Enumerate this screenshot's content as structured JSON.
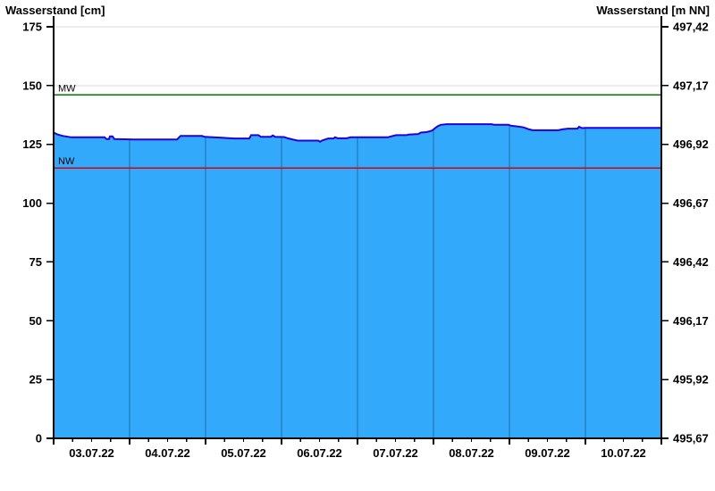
{
  "titles": {
    "left": "Wasserstand [cm]",
    "right": "Wasserstand [m NN]"
  },
  "chart_data": {
    "type": "area",
    "title": "Wasserstand hydrograph",
    "x": {
      "day_labels": [
        "03.07.22",
        "04.07.22",
        "05.07.22",
        "06.07.22",
        "07.07.22",
        "08.07.22",
        "09.07.22",
        "10.07.22"
      ],
      "days_shown": 8,
      "hours_total": 192,
      "minor_ticks_per_day": 4
    },
    "y_left": {
      "label": "Wasserstand [cm]",
      "min": 0,
      "max": 175,
      "tick_step": 25,
      "tick_labels": [
        "0",
        "25",
        "50",
        "75",
        "100",
        "125",
        "150",
        "175"
      ]
    },
    "y_right": {
      "label": "Wasserstand [m NN]",
      "min": 495.67,
      "max": 497.42,
      "tick_labels": [
        "495,67",
        "495,92",
        "496,17",
        "496,42",
        "496,67",
        "496,92",
        "497,17",
        "497,42"
      ]
    },
    "reference_lines": [
      {
        "name": "MW",
        "value_cm": 146,
        "color": "#007A00"
      },
      {
        "name": "NW",
        "value_cm": 115,
        "color": "#DD0000"
      }
    ],
    "series": [
      {
        "name": "Wasserstand",
        "unit": "cm",
        "points": [
          [
            0,
            130
          ],
          [
            1.1,
            129.3
          ],
          [
            2.8,
            128.6
          ],
          [
            5.6,
            128
          ],
          [
            16.1,
            128
          ],
          [
            16.7,
            127.3
          ],
          [
            17.5,
            127.3
          ],
          [
            17.8,
            128.4
          ],
          [
            18.6,
            128.4
          ],
          [
            19.2,
            127.3
          ],
          [
            25.4,
            127.1
          ],
          [
            39,
            127.1
          ],
          [
            40.1,
            128.6
          ],
          [
            46.9,
            128.6
          ],
          [
            47.7,
            128.2
          ],
          [
            53.1,
            127.8
          ],
          [
            57,
            127.5
          ],
          [
            61.8,
            127.5
          ],
          [
            62.4,
            128.9
          ],
          [
            64.7,
            128.9
          ],
          [
            65.5,
            128.2
          ],
          [
            68.6,
            128.2
          ],
          [
            69.2,
            128.8
          ],
          [
            70,
            128.2
          ],
          [
            72.8,
            128.1
          ],
          [
            74,
            127.6
          ],
          [
            75.7,
            127
          ],
          [
            77.1,
            126.6
          ],
          [
            83.6,
            126.6
          ],
          [
            84.2,
            126.1
          ],
          [
            84.7,
            126.6
          ],
          [
            86.7,
            127.5
          ],
          [
            88.4,
            127.5
          ],
          [
            88.9,
            128
          ],
          [
            89.8,
            127.6
          ],
          [
            92.6,
            127.6
          ],
          [
            93.8,
            128
          ],
          [
            105.6,
            128
          ],
          [
            106.4,
            128.3
          ],
          [
            108.2,
            128.9
          ],
          [
            111.5,
            128.9
          ],
          [
            112.1,
            129.2
          ],
          [
            115.2,
            129.4
          ],
          [
            116,
            130
          ],
          [
            117.7,
            130.2
          ],
          [
            118.9,
            130.6
          ],
          [
            119.7,
            131
          ],
          [
            120.6,
            132
          ],
          [
            121.4,
            132.8
          ],
          [
            122.3,
            133.3
          ],
          [
            124.2,
            133.6
          ],
          [
            138.4,
            133.6
          ],
          [
            139.2,
            133.3
          ],
          [
            143.7,
            133.3
          ],
          [
            144.6,
            132.9
          ],
          [
            146.8,
            132.6
          ],
          [
            148.5,
            132.2
          ],
          [
            150.2,
            131.4
          ],
          [
            151.3,
            131
          ],
          [
            159.5,
            131
          ],
          [
            160.7,
            131.4
          ],
          [
            162.4,
            131.7
          ],
          [
            165.5,
            131.7
          ],
          [
            166,
            132.5
          ],
          [
            166.9,
            131.9
          ],
          [
            168,
            132
          ],
          [
            192,
            132
          ]
        ]
      }
    ],
    "colors": {
      "area_fill": "#33A9FC",
      "curve_line": "#2200DD",
      "day_gridline": "#1E6CA3",
      "h_gridline": "#D9D9D9",
      "axis": "#000000",
      "mw_line": "#007A00",
      "nw_line": "#DD0000"
    },
    "layout": {
      "grid": true,
      "legend": "none"
    }
  }
}
